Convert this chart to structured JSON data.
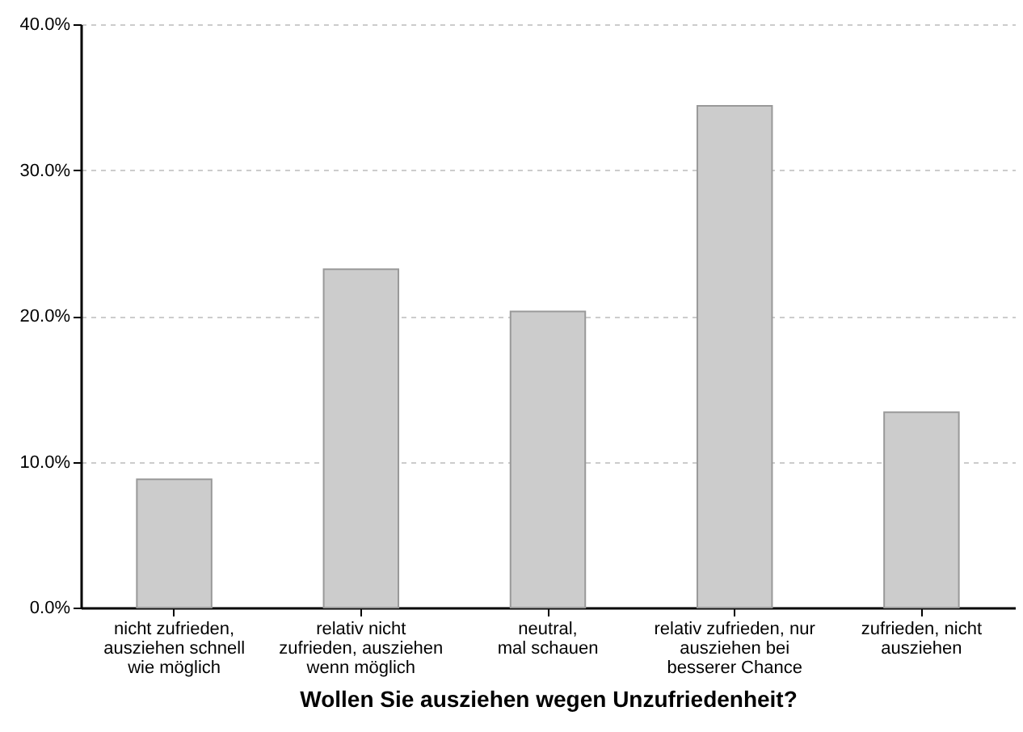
{
  "chart_data": {
    "type": "bar",
    "xlabel": "Wollen Sie ausziehen wegen Unzufriedenheit?",
    "categories": [
      "nicht zufrieden,\nausziehen schnell\nwie möglich",
      "relativ nicht\nzufrieden, ausziehen\nwenn möglich",
      "neutral,\nmal schauen",
      "relativ zufrieden, nur\nausziehen bei\nbesserer Chance",
      "zufrieden, nicht\nausziehen"
    ],
    "values": [
      8.8,
      23.2,
      20.3,
      34.4,
      13.4
    ],
    "color": "#cccccc",
    "ylim": [
      0,
      40
    ],
    "yticks": [
      {
        "value": 0,
        "label": "0.0%"
      },
      {
        "value": 10,
        "label": "10.0%"
      },
      {
        "value": 20,
        "label": "20.0%"
      },
      {
        "value": 30,
        "label": "30.0%"
      },
      {
        "value": 40,
        "label": "40.0%"
      }
    ],
    "grid": "y"
  }
}
